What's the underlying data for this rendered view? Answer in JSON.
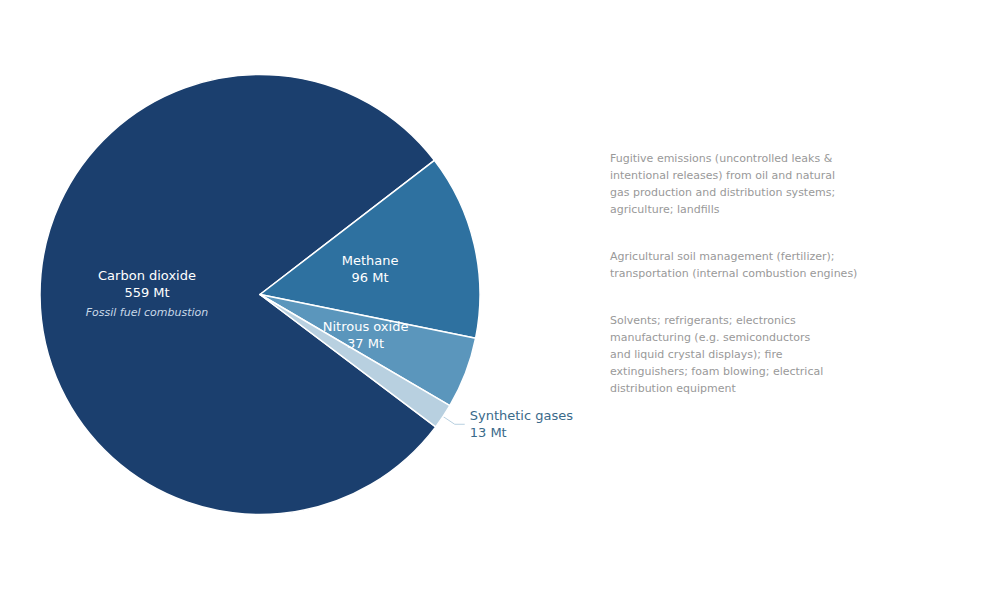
{
  "chart_data": {
    "type": "pie",
    "categories": [
      "Carbon dioxide",
      "Methane",
      "Nitrous oxide",
      "Synthetic gases"
    ],
    "values": [
      559,
      96,
      37,
      13
    ],
    "value_labels": [
      "559 Mt",
      "96 Mt",
      "37 Mt",
      "13 Mt"
    ],
    "colors": [
      "#1b3f6e",
      "#2e71a0",
      "#5b96bc",
      "#b8d0e0"
    ],
    "data_labels": true,
    "annotations": [
      {
        "category": "Carbon dioxide",
        "text": "Fossil fuel combustion"
      },
      {
        "category": "Methane",
        "text": "Fugitive emissions (uncontrolled leaks &\nintentional releases) from oil and natural\ngas production and distribution systems;\nagriculture; landfills"
      },
      {
        "category": "Nitrous oxide",
        "text": "Agricultural soil management (fertilizer);\ntransportation (internal combustion engines)"
      },
      {
        "category": "Synthetic gases",
        "text": "Solvents; refrigerants; electronics\nmanufacturing (e.g. semiconductors\nand liquid crystal displays); fire\nextinguishers; foam blowing; electrical\ndistribution equipment"
      }
    ]
  }
}
